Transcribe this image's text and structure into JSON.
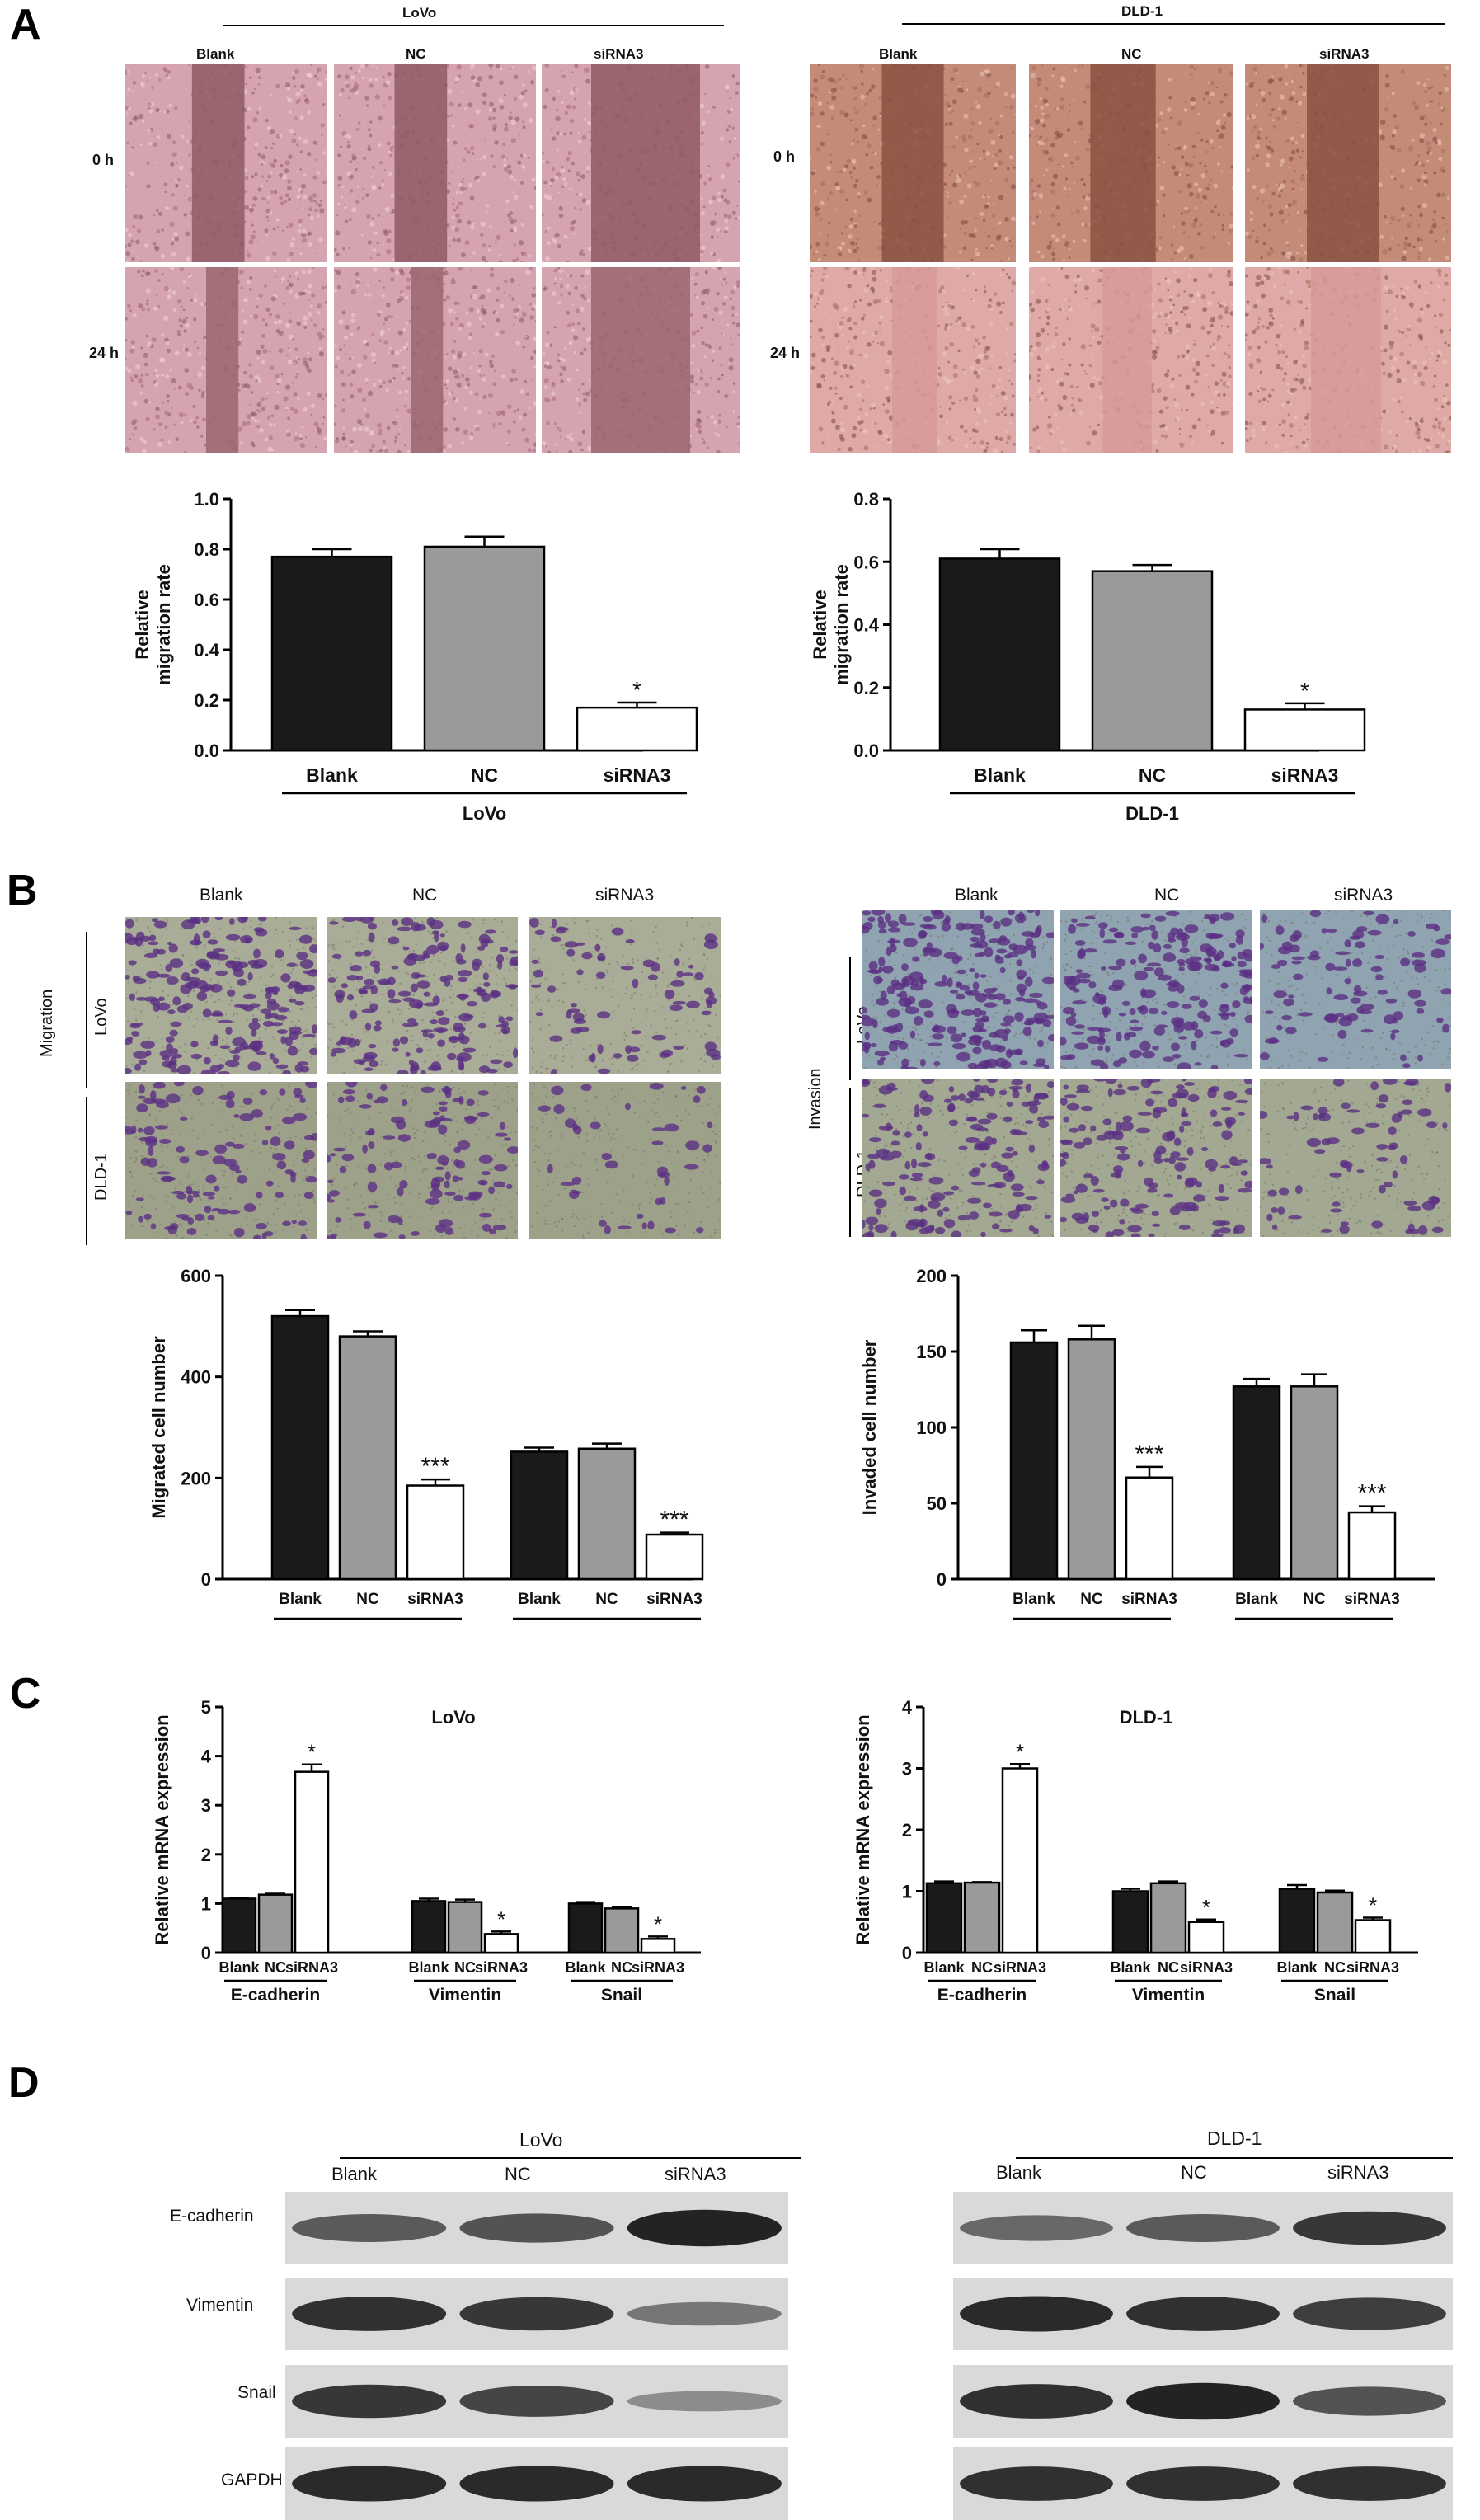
{
  "panels": {
    "A": "A",
    "B": "B",
    "C": "C",
    "D": "D"
  },
  "groups": [
    "Blank",
    "NC",
    "siRNA3"
  ],
  "cell_lines": [
    "LoVo",
    "DLD-1"
  ],
  "time_labels": [
    "0 h",
    "24 h"
  ],
  "assay_labels": {
    "migration": "Migration",
    "invasion": "Invasion"
  },
  "blot_rows": [
    "E-cadherin",
    "Vimentin",
    "Snail",
    "GAPDH"
  ],
  "colors": {
    "blank": "#1a1a1a",
    "nc": "#9a9a9a",
    "sirna3": "#ffffff",
    "wound_lovo": "#c98f9c",
    "wound_dld": "#b77a68",
    "transwell_bg": "#9a9e86",
    "stain": "#5b2f83"
  },
  "chart_data": [
    {
      "id": "A-LoVo",
      "type": "bar",
      "categories": [
        "Blank",
        "NC",
        "siRNA3"
      ],
      "series": [
        {
          "values": [
            0.77,
            0.81,
            0.17
          ],
          "errors": [
            0.03,
            0.04,
            0.02
          ]
        }
      ],
      "significance": [
        "",
        "",
        "*"
      ],
      "ylabel": [
        "Relative",
        "migration rate"
      ],
      "yticks": [
        "0.0",
        "0.2",
        "0.4",
        "0.6",
        "0.8",
        "1.0"
      ],
      "ylim": [
        0,
        1.0
      ],
      "xgroup": "LoVo"
    },
    {
      "id": "A-DLD1",
      "type": "bar",
      "categories": [
        "Blank",
        "NC",
        "siRNA3"
      ],
      "series": [
        {
          "values": [
            0.61,
            0.57,
            0.13
          ],
          "errors": [
            0.03,
            0.02,
            0.02
          ]
        }
      ],
      "significance": [
        "",
        "",
        "*"
      ],
      "ylabel": [
        "Relative",
        "migration rate"
      ],
      "yticks": [
        "0.0",
        "0.2",
        "0.4",
        "0.6",
        "0.8"
      ],
      "ylim": [
        0,
        0.8
      ],
      "xgroup": "DLD-1"
    },
    {
      "id": "B-migration",
      "type": "bar",
      "categories": [
        "Blank",
        "NC",
        "siRNA3"
      ],
      "groups": [
        "LoVo",
        "DLD-1"
      ],
      "series": [
        {
          "group": "LoVo",
          "values": [
            520,
            480,
            185
          ],
          "errors": [
            12,
            10,
            12
          ]
        },
        {
          "group": "DLD-1",
          "values": [
            252,
            258,
            88
          ],
          "errors": [
            8,
            10,
            4
          ]
        }
      ],
      "significance": [
        [
          "",
          "",
          "***"
        ],
        [
          "",
          "",
          "***"
        ]
      ],
      "ylabel": [
        "Migrated cell number"
      ],
      "yticks": [
        "0",
        "200",
        "400",
        "600"
      ],
      "ylim": [
        0,
        600
      ]
    },
    {
      "id": "B-invasion",
      "type": "bar",
      "categories": [
        "Blank",
        "NC",
        "siRNA3"
      ],
      "groups": [
        "LoVo",
        "DLD-1"
      ],
      "series": [
        {
          "group": "LoVo",
          "values": [
            156,
            158,
            67
          ],
          "errors": [
            8,
            9,
            7
          ]
        },
        {
          "group": "DLD-1",
          "values": [
            127,
            127,
            44
          ],
          "errors": [
            5,
            8,
            4
          ]
        }
      ],
      "significance": [
        [
          "",
          "",
          "***"
        ],
        [
          "",
          "",
          "***"
        ]
      ],
      "ylabel": [
        "Invaded cell number"
      ],
      "yticks": [
        "0",
        "50",
        "100",
        "150",
        "200"
      ],
      "ylim": [
        0,
        200
      ]
    },
    {
      "id": "C-LoVo",
      "type": "bar",
      "title": "LoVo",
      "categories": [
        "Blank",
        "NC",
        "siRNA3"
      ],
      "groups": [
        "E-cadherin",
        "Vimentin",
        "Snail"
      ],
      "series": [
        {
          "group": "E-cadherin",
          "values": [
            1.1,
            1.18,
            3.68
          ],
          "errors": [
            0.02,
            0.02,
            0.15
          ]
        },
        {
          "group": "Vimentin",
          "values": [
            1.05,
            1.03,
            0.38
          ],
          "errors": [
            0.05,
            0.05,
            0.05
          ]
        },
        {
          "group": "Snail",
          "values": [
            1.0,
            0.9,
            0.28
          ],
          "errors": [
            0.03,
            0.02,
            0.05
          ]
        }
      ],
      "significance": [
        [
          "",
          "",
          "*"
        ],
        [
          "",
          "",
          "*"
        ],
        [
          "",
          "",
          "*"
        ]
      ],
      "ylabel": [
        "Relative mRNA expression"
      ],
      "yticks": [
        "0",
        "1",
        "2",
        "3",
        "4",
        "5"
      ],
      "ylim": [
        0,
        5
      ]
    },
    {
      "id": "C-DLD1",
      "type": "bar",
      "title": "DLD-1",
      "categories": [
        "Blank",
        "NC",
        "siRNA3"
      ],
      "groups": [
        "E-cadherin",
        "Vimentin",
        "Snail"
      ],
      "series": [
        {
          "group": "E-cadherin",
          "values": [
            1.13,
            1.14,
            3.0
          ],
          "errors": [
            0.03,
            0.01,
            0.07
          ]
        },
        {
          "group": "Vimentin",
          "values": [
            1.0,
            1.13,
            0.5
          ],
          "errors": [
            0.04,
            0.03,
            0.04
          ]
        },
        {
          "group": "Snail",
          "values": [
            1.04,
            0.98,
            0.53
          ],
          "errors": [
            0.06,
            0.03,
            0.04
          ]
        }
      ],
      "significance": [
        [
          "",
          "",
          "*"
        ],
        [
          "",
          "",
          "*"
        ],
        [
          "",
          "",
          "*"
        ]
      ],
      "ylabel": [
        "Relative mRNA expression"
      ],
      "yticks": [
        "0",
        "1",
        "2",
        "3",
        "4"
      ],
      "ylim": [
        0,
        4
      ]
    }
  ]
}
